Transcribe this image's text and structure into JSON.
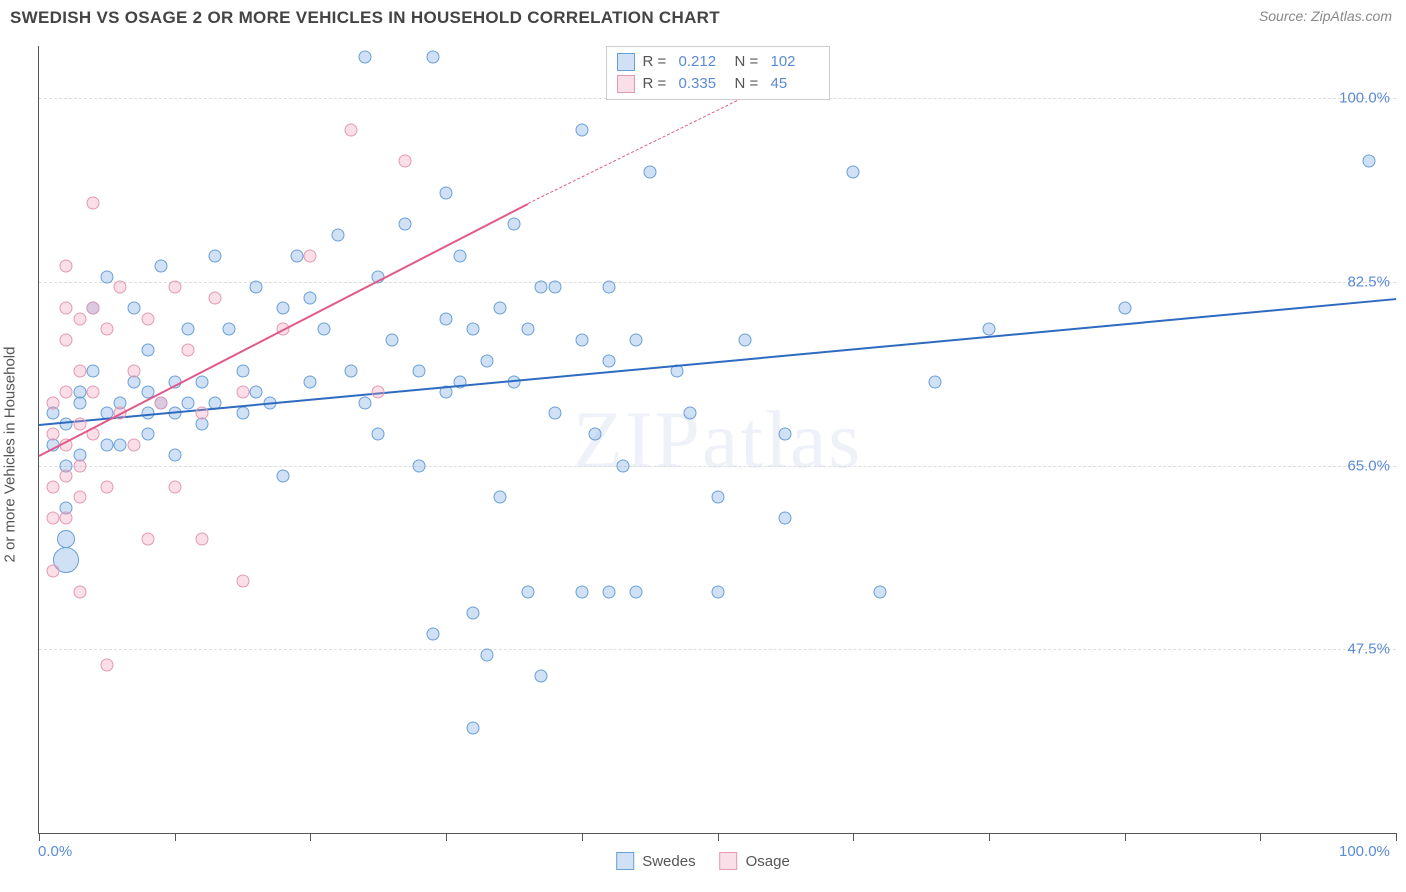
{
  "header": {
    "title": "SWEDISH VS OSAGE 2 OR MORE VEHICLES IN HOUSEHOLD CORRELATION CHART",
    "source": "Source: ZipAtlas.com"
  },
  "watermark": {
    "part1": "ZIP",
    "part2": "atlas"
  },
  "chart": {
    "type": "scatter",
    "x_domain": [
      0,
      100
    ],
    "y_domain": [
      30,
      105
    ],
    "y_axis_title": "2 or more Vehicles in Household",
    "y_ticks": [
      {
        "value": 100.0,
        "label": "100.0%"
      },
      {
        "value": 82.5,
        "label": "82.5%"
      },
      {
        "value": 65.0,
        "label": "65.0%"
      },
      {
        "value": 47.5,
        "label": "47.5%"
      }
    ],
    "x_ticks": [
      0,
      10,
      20,
      30,
      40,
      50,
      60,
      70,
      80,
      90,
      100
    ],
    "x_labels": [
      {
        "value": 0,
        "label": "0.0%"
      },
      {
        "value": 100,
        "label": "100.0%"
      }
    ],
    "grid_color": "#dddddd",
    "background_color": "#ffffff",
    "axis_color": "#555555",
    "tick_label_color": "#5b8bd4",
    "series": [
      {
        "name": "Swedes",
        "point_fill": "rgba(120,170,230,0.35)",
        "point_stroke": "#6aa0d8",
        "line_color": "#2e6bc0",
        "R": "0.212",
        "N": "102",
        "trend": {
          "x1": 0,
          "y1": 69,
          "x2": 100,
          "y2": 81
        },
        "default_size": 13,
        "points": [
          {
            "x": 1,
            "y": 67
          },
          {
            "x": 1,
            "y": 70
          },
          {
            "x": 2,
            "y": 69
          },
          {
            "x": 2,
            "y": 56,
            "s": 26
          },
          {
            "x": 2,
            "y": 61
          },
          {
            "x": 2,
            "y": 65
          },
          {
            "x": 2,
            "y": 58,
            "s": 18
          },
          {
            "x": 3,
            "y": 71
          },
          {
            "x": 3,
            "y": 66
          },
          {
            "x": 3,
            "y": 72
          },
          {
            "x": 4,
            "y": 80
          },
          {
            "x": 4,
            "y": 74
          },
          {
            "x": 5,
            "y": 70
          },
          {
            "x": 5,
            "y": 67
          },
          {
            "x": 5,
            "y": 83
          },
          {
            "x": 6,
            "y": 71
          },
          {
            "x": 6,
            "y": 67
          },
          {
            "x": 7,
            "y": 80
          },
          {
            "x": 7,
            "y": 73
          },
          {
            "x": 8,
            "y": 72
          },
          {
            "x": 8,
            "y": 68
          },
          {
            "x": 8,
            "y": 76
          },
          {
            "x": 8,
            "y": 70
          },
          {
            "x": 9,
            "y": 71
          },
          {
            "x": 9,
            "y": 84
          },
          {
            "x": 10,
            "y": 73
          },
          {
            "x": 10,
            "y": 66
          },
          {
            "x": 10,
            "y": 70
          },
          {
            "x": 11,
            "y": 71
          },
          {
            "x": 11,
            "y": 78
          },
          {
            "x": 12,
            "y": 69
          },
          {
            "x": 12,
            "y": 73
          },
          {
            "x": 13,
            "y": 85
          },
          {
            "x": 13,
            "y": 71
          },
          {
            "x": 14,
            "y": 78
          },
          {
            "x": 15,
            "y": 70
          },
          {
            "x": 15,
            "y": 74
          },
          {
            "x": 16,
            "y": 72
          },
          {
            "x": 16,
            "y": 82
          },
          {
            "x": 17,
            "y": 71
          },
          {
            "x": 18,
            "y": 64
          },
          {
            "x": 18,
            "y": 80
          },
          {
            "x": 19,
            "y": 85
          },
          {
            "x": 20,
            "y": 73
          },
          {
            "x": 20,
            "y": 81
          },
          {
            "x": 21,
            "y": 78
          },
          {
            "x": 22,
            "y": 87
          },
          {
            "x": 23,
            "y": 74
          },
          {
            "x": 24,
            "y": 71
          },
          {
            "x": 24,
            "y": 104
          },
          {
            "x": 25,
            "y": 83
          },
          {
            "x": 25,
            "y": 68
          },
          {
            "x": 26,
            "y": 77
          },
          {
            "x": 27,
            "y": 88
          },
          {
            "x": 28,
            "y": 74
          },
          {
            "x": 28,
            "y": 65
          },
          {
            "x": 29,
            "y": 49
          },
          {
            "x": 29,
            "y": 104
          },
          {
            "x": 30,
            "y": 79
          },
          {
            "x": 30,
            "y": 72
          },
          {
            "x": 30,
            "y": 91
          },
          {
            "x": 31,
            "y": 85
          },
          {
            "x": 31,
            "y": 73
          },
          {
            "x": 32,
            "y": 78
          },
          {
            "x": 32,
            "y": 51
          },
          {
            "x": 32,
            "y": 40
          },
          {
            "x": 33,
            "y": 75
          },
          {
            "x": 33,
            "y": 47
          },
          {
            "x": 34,
            "y": 80
          },
          {
            "x": 34,
            "y": 62
          },
          {
            "x": 35,
            "y": 73
          },
          {
            "x": 35,
            "y": 88
          },
          {
            "x": 36,
            "y": 78
          },
          {
            "x": 36,
            "y": 53
          },
          {
            "x": 37,
            "y": 82
          },
          {
            "x": 37,
            "y": 45
          },
          {
            "x": 38,
            "y": 70
          },
          {
            "x": 38,
            "y": 82
          },
          {
            "x": 40,
            "y": 77
          },
          {
            "x": 40,
            "y": 53
          },
          {
            "x": 40,
            "y": 97
          },
          {
            "x": 41,
            "y": 68
          },
          {
            "x": 42,
            "y": 75
          },
          {
            "x": 42,
            "y": 82
          },
          {
            "x": 42,
            "y": 53
          },
          {
            "x": 43,
            "y": 65
          },
          {
            "x": 44,
            "y": 77
          },
          {
            "x": 44,
            "y": 53
          },
          {
            "x": 45,
            "y": 93
          },
          {
            "x": 47,
            "y": 74
          },
          {
            "x": 48,
            "y": 70
          },
          {
            "x": 50,
            "y": 62
          },
          {
            "x": 50,
            "y": 53
          },
          {
            "x": 52,
            "y": 77
          },
          {
            "x": 55,
            "y": 68
          },
          {
            "x": 55,
            "y": 60
          },
          {
            "x": 60,
            "y": 93
          },
          {
            "x": 62,
            "y": 53
          },
          {
            "x": 66,
            "y": 73
          },
          {
            "x": 70,
            "y": 78
          },
          {
            "x": 80,
            "y": 80
          },
          {
            "x": 98,
            "y": 94
          }
        ]
      },
      {
        "name": "Osage",
        "point_fill": "rgba(240,150,180,0.30)",
        "point_stroke": "#e29ab5",
        "line_color": "#e05a8a",
        "R": "0.335",
        "N": "45",
        "trend": {
          "x1": 0,
          "y1": 66,
          "x2": 36,
          "y2": 90
        },
        "trend_dashed_ext": {
          "x1": 36,
          "y1": 90,
          "x2": 58,
          "y2": 104
        },
        "default_size": 13,
        "points": [
          {
            "x": 1,
            "y": 63
          },
          {
            "x": 1,
            "y": 68
          },
          {
            "x": 1,
            "y": 60
          },
          {
            "x": 1,
            "y": 71
          },
          {
            "x": 1,
            "y": 55
          },
          {
            "x": 2,
            "y": 67
          },
          {
            "x": 2,
            "y": 72
          },
          {
            "x": 2,
            "y": 64
          },
          {
            "x": 2,
            "y": 80
          },
          {
            "x": 2,
            "y": 60
          },
          {
            "x": 2,
            "y": 77
          },
          {
            "x": 2,
            "y": 84
          },
          {
            "x": 3,
            "y": 65
          },
          {
            "x": 3,
            "y": 69
          },
          {
            "x": 3,
            "y": 79
          },
          {
            "x": 3,
            "y": 62
          },
          {
            "x": 3,
            "y": 74
          },
          {
            "x": 3,
            "y": 53
          },
          {
            "x": 4,
            "y": 68
          },
          {
            "x": 4,
            "y": 90
          },
          {
            "x": 4,
            "y": 80
          },
          {
            "x": 4,
            "y": 72
          },
          {
            "x": 5,
            "y": 78
          },
          {
            "x": 5,
            "y": 63
          },
          {
            "x": 5,
            "y": 46
          },
          {
            "x": 6,
            "y": 70
          },
          {
            "x": 6,
            "y": 82
          },
          {
            "x": 7,
            "y": 67
          },
          {
            "x": 7,
            "y": 74
          },
          {
            "x": 8,
            "y": 79
          },
          {
            "x": 8,
            "y": 58
          },
          {
            "x": 9,
            "y": 71
          },
          {
            "x": 10,
            "y": 82
          },
          {
            "x": 10,
            "y": 63
          },
          {
            "x": 11,
            "y": 76
          },
          {
            "x": 12,
            "y": 70
          },
          {
            "x": 12,
            "y": 58
          },
          {
            "x": 13,
            "y": 81
          },
          {
            "x": 15,
            "y": 72
          },
          {
            "x": 15,
            "y": 54
          },
          {
            "x": 18,
            "y": 78
          },
          {
            "x": 20,
            "y": 85
          },
          {
            "x": 23,
            "y": 97
          },
          {
            "x": 25,
            "y": 72
          },
          {
            "x": 27,
            "y": 94
          }
        ]
      }
    ],
    "legend_top": {
      "rows": [
        {
          "swatch_fill": "rgba(120,170,230,0.35)",
          "swatch_stroke": "#6aa0d8",
          "r_label": "R =",
          "r_val": "0.212",
          "n_label": "N =",
          "n_val": "102"
        },
        {
          "swatch_fill": "rgba(240,150,180,0.30)",
          "swatch_stroke": "#e29ab5",
          "r_label": "R =",
          "r_val": "0.335",
          "n_label": "N =",
          "n_val": "45"
        }
      ]
    },
    "legend_bottom": {
      "items": [
        {
          "swatch_fill": "rgba(120,170,230,0.35)",
          "swatch_stroke": "#6aa0d8",
          "label": "Swedes"
        },
        {
          "swatch_fill": "rgba(240,150,180,0.30)",
          "swatch_stroke": "#e29ab5",
          "label": "Osage"
        }
      ]
    }
  }
}
